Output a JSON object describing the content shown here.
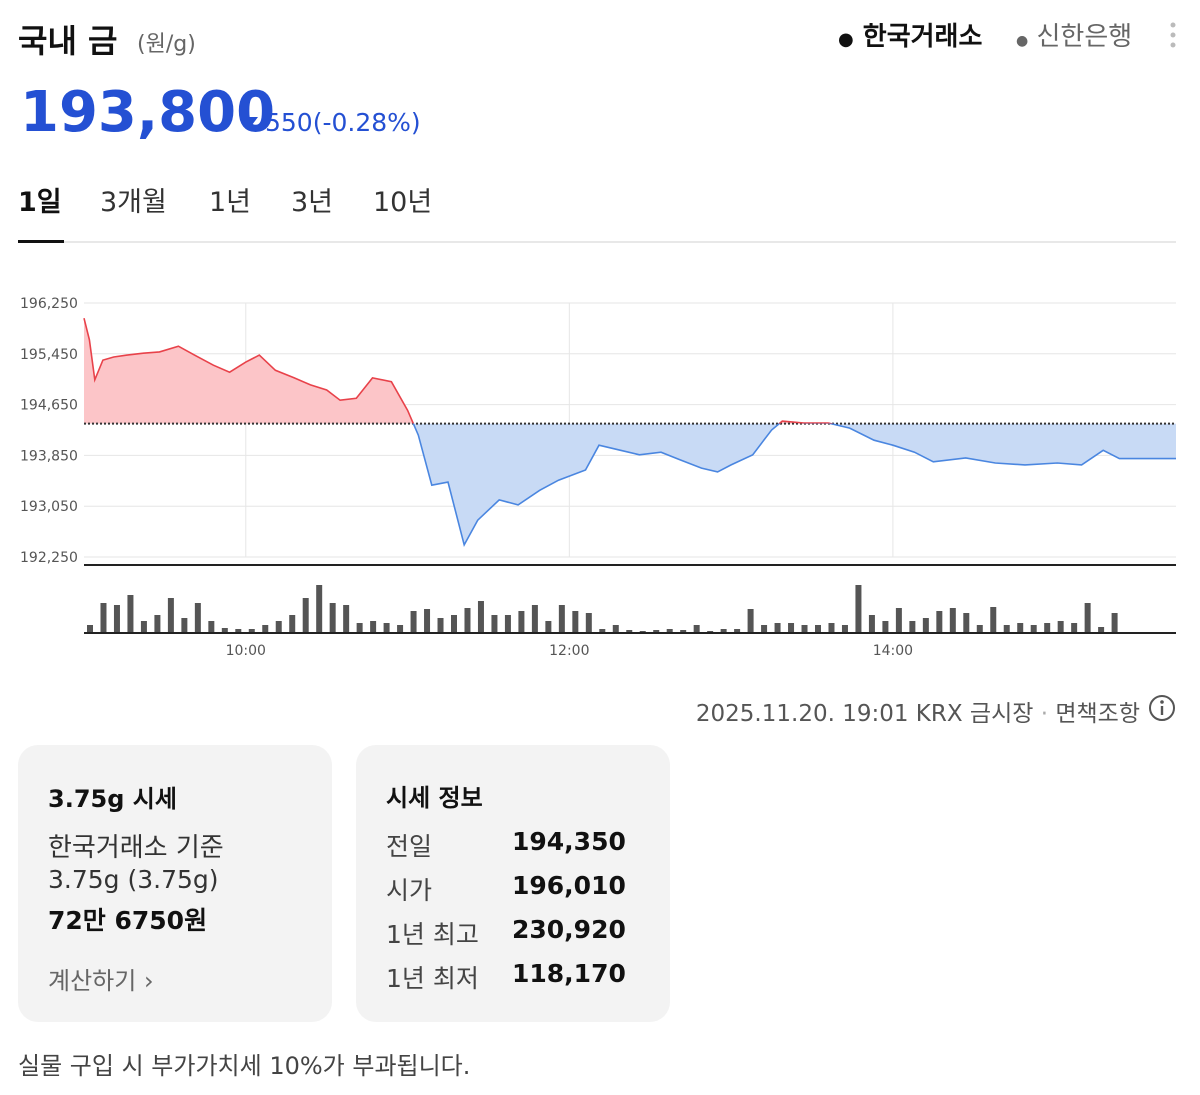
{
  "header": {
    "title": "국내 금",
    "unit": "(원/g)",
    "sources": [
      "한국거래소",
      "신한은행"
    ]
  },
  "price": {
    "current": "193,800",
    "change": "550",
    "change_pct": "(-0.28%)"
  },
  "tabs": [
    "1일",
    "3개월",
    "1년",
    "3년",
    "10년"
  ],
  "chart_data": [
    {
      "type": "line",
      "x": [
        "09:00",
        "09:02",
        "09:04",
        "09:07",
        "09:11",
        "09:16",
        "09:22",
        "09:28",
        "09:35",
        "09:41",
        "09:48",
        "09:54",
        "10:00",
        "10:05",
        "10:11",
        "10:18",
        "10:24",
        "10:30",
        "10:35",
        "10:41",
        "10:47",
        "10:54",
        "11:00",
        "11:04",
        "11:09",
        "11:15",
        "11:21",
        "11:26",
        "11:34",
        "11:41",
        "11:49",
        "11:56",
        "12:06",
        "12:11",
        "12:19",
        "12:26",
        "12:34",
        "12:41",
        "12:49",
        "12:55",
        "13:00",
        "13:08",
        "13:15",
        "13:19",
        "13:27",
        "13:36",
        "13:44",
        "13:53",
        "14:00",
        "14:08",
        "14:15",
        "14:27",
        "14:38",
        "14:49",
        "15:01",
        "15:10",
        "15:18",
        "15:24",
        "15:31",
        "15:45"
      ],
      "values": [
        196010,
        195670,
        195040,
        195350,
        195400,
        195430,
        195460,
        195480,
        195570,
        195430,
        195270,
        195160,
        195320,
        195430,
        195190,
        195070,
        194960,
        194880,
        194720,
        194750,
        195070,
        195010,
        194560,
        194170,
        193380,
        193430,
        192440,
        192830,
        193150,
        193070,
        193300,
        193460,
        193620,
        194010,
        193930,
        193860,
        193900,
        193780,
        193650,
        193590,
        193700,
        193860,
        194250,
        194390,
        194360,
        194360,
        194280,
        194090,
        194010,
        193900,
        193750,
        193810,
        193730,
        193700,
        193730,
        193700,
        193930,
        193800,
        193800,
        193800
      ],
      "baseline": 194350,
      "up_color": "#e8424a",
      "up_fill": "#fcc5c8",
      "down_color": "#4a86e0",
      "down_fill": "#c8daf5",
      "xlim": [
        "09:00",
        "15:45"
      ],
      "xticks": [
        "10:00",
        "12:00",
        "14:00"
      ],
      "ylim": [
        192250,
        196250
      ],
      "yticks": [
        {
          "value": 192250,
          "label": "192,250"
        },
        {
          "value": 193050,
          "label": "193,050"
        },
        {
          "value": 193850,
          "label": "193,850"
        },
        {
          "value": 194650,
          "label": "194,650"
        },
        {
          "value": 195450,
          "label": "195,450"
        },
        {
          "value": 196250,
          "label": "196,250"
        }
      ],
      "grid": true
    },
    {
      "type": "bar",
      "x": [
        "09:00",
        "09:05",
        "09:10",
        "09:15",
        "09:20",
        "09:25",
        "09:30",
        "09:35",
        "09:40",
        "09:45",
        "09:50",
        "09:55",
        "10:00",
        "10:05",
        "10:10",
        "10:15",
        "10:20",
        "10:25",
        "10:30",
        "10:35",
        "10:40",
        "10:45",
        "10:50",
        "10:55",
        "11:00",
        "11:05",
        "11:10",
        "11:15",
        "11:20",
        "11:25",
        "11:30",
        "11:35",
        "11:40",
        "11:45",
        "11:50",
        "11:55",
        "12:00",
        "12:05",
        "12:10",
        "12:15",
        "12:20",
        "12:25",
        "12:30",
        "12:35",
        "12:40",
        "12:45",
        "12:50",
        "12:55",
        "13:00",
        "13:05",
        "13:10",
        "13:15",
        "13:20",
        "13:25",
        "13:30",
        "13:35",
        "13:40",
        "13:45",
        "13:50",
        "13:55",
        "14:00",
        "14:05",
        "14:10",
        "14:15",
        "14:20",
        "14:25",
        "14:30",
        "14:35",
        "14:40",
        "14:45",
        "14:50",
        "14:55",
        "15:00",
        "15:05",
        "15:10",
        "15:15",
        "15:20"
      ],
      "values": [
        8,
        30,
        28,
        38,
        12,
        18,
        35,
        15,
        30,
        12,
        5,
        4,
        4,
        8,
        12,
        18,
        35,
        48,
        30,
        28,
        10,
        12,
        10,
        8,
        22,
        24,
        15,
        18,
        25,
        32,
        18,
        18,
        22,
        28,
        12,
        28,
        22,
        20,
        4,
        8,
        3,
        2,
        3,
        4,
        3,
        8,
        2,
        4,
        4,
        24,
        8,
        10,
        10,
        8,
        8,
        10,
        8,
        48,
        18,
        12,
        25,
        12,
        15,
        22,
        25,
        20,
        8,
        26,
        8,
        10,
        8,
        10,
        12,
        10,
        30,
        6,
        20
      ],
      "color": "#555555",
      "xlim": [
        "09:00",
        "15:45"
      ],
      "ylim": [
        0,
        60
      ]
    }
  ],
  "footer": {
    "timestamp": "2025.11.20. 19:01",
    "source": "KRX 금시장",
    "disclaimer": "면책조항"
  },
  "card_gram": {
    "title": "3.75g 시세",
    "basis": "한국거래소 기준",
    "weight": "3.75g (3.75g)",
    "price": "72만 6750원",
    "link": "계산하기"
  },
  "info": {
    "title": "시세 정보",
    "rows": [
      [
        "전일",
        "194,350"
      ],
      [
        "시가",
        "196,010"
      ],
      [
        "1년 최고",
        "230,920"
      ],
      [
        "1년 최저",
        "118,170"
      ]
    ]
  },
  "note": "실물 구입 시 부가가치세 10%가 부과됩니다."
}
